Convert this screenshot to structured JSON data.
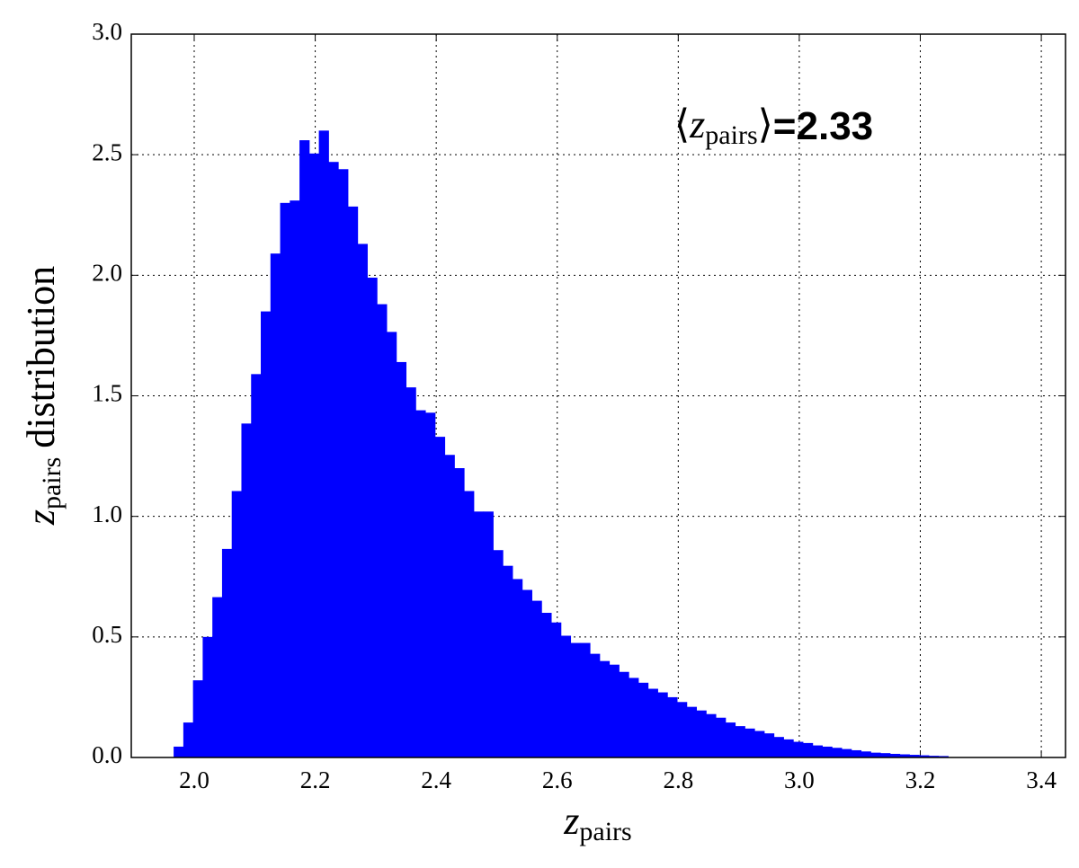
{
  "chart_data": {
    "type": "histogram",
    "x_label": {
      "main": "z",
      "sub": "pairs"
    },
    "y_label": {
      "main": "z",
      "sub": "pairs",
      "rest": "distribution"
    },
    "annotation": {
      "open": "⟨",
      "main": "z",
      "sub": "pairs",
      "close": "⟩",
      "rest": "=2.33"
    },
    "color": "#0000ff",
    "bins": [
      1.966,
      1.982,
      1.998,
      2.014,
      2.03,
      2.046,
      2.062,
      2.078,
      2.094,
      2.11,
      2.126,
      2.142,
      2.158,
      2.174,
      2.19,
      2.206,
      2.222,
      2.238,
      2.254,
      2.27,
      2.286,
      2.302,
      2.318,
      2.334,
      2.35,
      2.366,
      2.382,
      2.398,
      2.414,
      2.43,
      2.446,
      2.462,
      2.478,
      2.494,
      2.51,
      2.526,
      2.542,
      2.558,
      2.574,
      2.59,
      2.606,
      2.622,
      2.638,
      2.654,
      2.67,
      2.686,
      2.702,
      2.718,
      2.734,
      2.75,
      2.766,
      2.782,
      2.798,
      2.814,
      2.83,
      2.846,
      2.862,
      2.878,
      2.894,
      2.91,
      2.926,
      2.942,
      2.958,
      2.974,
      2.99,
      3.006,
      3.022,
      3.038,
      3.054,
      3.07,
      3.086,
      3.102,
      3.118,
      3.134,
      3.15,
      3.166,
      3.182,
      3.198,
      3.214,
      3.23,
      3.246
    ],
    "values": [
      0.045,
      0.145,
      0.32,
      0.5,
      0.665,
      0.865,
      1.105,
      1.385,
      1.59,
      1.85,
      2.09,
      2.3,
      2.31,
      2.56,
      2.505,
      2.6,
      2.47,
      2.44,
      2.285,
      2.13,
      1.99,
      1.88,
      1.765,
      1.64,
      1.535,
      1.44,
      1.43,
      1.33,
      1.255,
      1.2,
      1.105,
      1.02,
      1.02,
      0.86,
      0.795,
      0.74,
      0.695,
      0.65,
      0.6,
      0.56,
      0.505,
      0.475,
      0.475,
      0.43,
      0.4,
      0.385,
      0.355,
      0.33,
      0.31,
      0.285,
      0.27,
      0.25,
      0.23,
      0.21,
      0.195,
      0.18,
      0.165,
      0.145,
      0.13,
      0.12,
      0.11,
      0.1,
      0.085,
      0.075,
      0.065,
      0.06,
      0.05,
      0.045,
      0.04,
      0.035,
      0.03,
      0.025,
      0.02,
      0.018,
      0.015,
      0.013,
      0.011,
      0.009,
      0.007,
      0.006
    ],
    "xlim": [
      1.896,
      3.44
    ],
    "ylim": [
      0,
      3
    ],
    "xticks": [
      {
        "value": 2.0,
        "label": "2.0"
      },
      2.2,
      2.4,
      2.6,
      2.8,
      {
        "value": 3.0,
        "label": "3.0"
      },
      3.2,
      3.4
    ],
    "yticks": [
      {
        "value": 0.0,
        "label": "0.0"
      },
      0.5,
      {
        "value": 1.0,
        "label": "1.0"
      },
      1.5,
      {
        "value": 2.0,
        "label": "2.0"
      },
      2.5,
      {
        "value": 3.0,
        "label": "3.0"
      }
    ],
    "grid": true
  }
}
